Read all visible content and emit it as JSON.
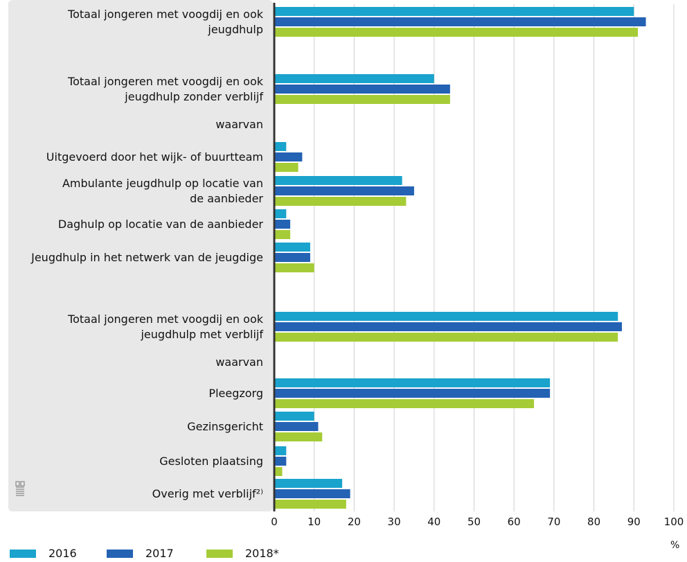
{
  "chart_data": {
    "type": "bar",
    "orientation": "horizontal",
    "categories": [
      [
        "Totaal jongeren met voogdij en ook",
        "jeugdhulp"
      ],
      [
        "Totaal jongeren met voogdij en ook",
        "jeugdhulp zonder verblijf"
      ],
      [
        "waarvan"
      ],
      [
        "Uitgevoerd door het wijk- of buurtteam"
      ],
      [
        "Ambulante jeugdhulp op locatie van",
        "de aanbieder"
      ],
      [
        "Daghulp op locatie van de aanbieder"
      ],
      [
        "Jeugdhulp in het netwerk van de jeugdige"
      ],
      [
        "Totaal jongeren met voogdij en ook",
        "jeugdhulp met verblijf"
      ],
      [
        "waarvan"
      ],
      [
        "Pleegzorg"
      ],
      [
        "Gezinsgericht"
      ],
      [
        "Gesloten plaatsing"
      ],
      [
        "Overig met verblijf²⁾"
      ]
    ],
    "series": [
      {
        "name": "2016",
        "color": "#1aa3cc",
        "values": [
          90,
          40,
          null,
          3,
          32,
          3,
          9,
          86,
          null,
          69,
          10,
          3,
          17
        ]
      },
      {
        "name": "2017",
        "color": "#2462b4",
        "values": [
          93,
          44,
          null,
          7,
          35,
          4,
          9,
          87,
          null,
          69,
          11,
          3,
          19
        ]
      },
      {
        "name": "2018*",
        "color": "#a5cc36",
        "values": [
          91,
          44,
          null,
          6,
          33,
          4,
          10,
          86,
          null,
          65,
          12,
          2,
          18
        ]
      }
    ],
    "xlim": [
      0,
      100
    ],
    "xticks": [
      "0",
      "10",
      "20",
      "30",
      "40",
      "50",
      "60",
      "70",
      "80",
      "90",
      "100"
    ],
    "unit": "%",
    "grid": true,
    "legend_position": "bottom-left"
  },
  "colors": {
    "label_panel": "#e8e8e8",
    "axis": "#333333",
    "grid": "#cfcfcf"
  },
  "logo": "cbs-logo-icon"
}
